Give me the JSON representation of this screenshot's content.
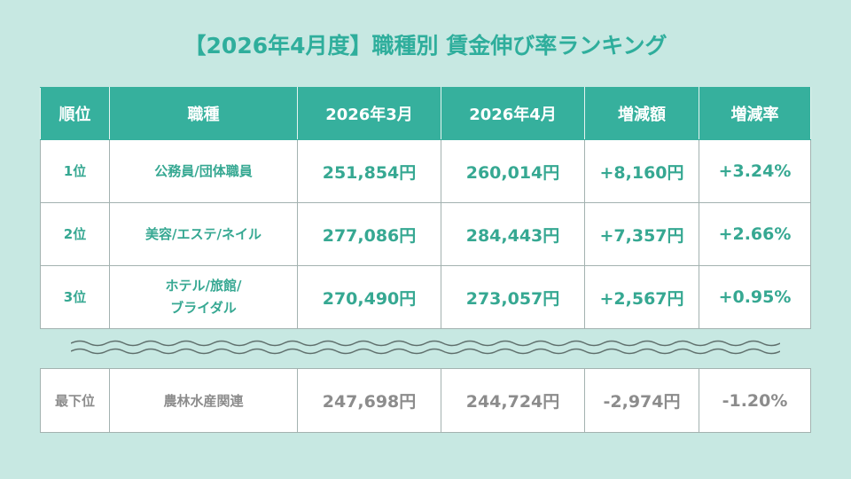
{
  "title": "【2026年4月度】職種別 賃金伸び率ランキング",
  "headers": [
    "順位",
    "職種",
    "2026年3月",
    "2026年4月",
    "増減額",
    "増減率"
  ],
  "rows": [
    {
      "rank": "1位",
      "job": "公務員/団体職員",
      "job2": "",
      "mar": "251,854円",
      "apr": "260,014円",
      "diff": "+8,160円",
      "rate": "+3.24%"
    },
    {
      "rank": "2位",
      "job": "美容/エステ/ネイル",
      "job2": "",
      "mar": "277,086円",
      "apr": "284,443円",
      "diff": "+7,357円",
      "rate": "+2.66%"
    },
    {
      "rank": "3位",
      "job": "ホテル/旅館/",
      "job2": "ブライダル",
      "mar": "270,490円",
      "apr": "273,057円",
      "diff": "+2,567円",
      "rate": "+0.95%"
    }
  ],
  "bottom_row": {
    "rank": "最下位",
    "job": "農林水産関連",
    "mar": "247,698円",
    "apr": "244,724円",
    "diff": "-2,974円",
    "rate": "-1.20%"
  },
  "colors": {
    "header_bg": "#36b09d",
    "accent_text": "#36a892",
    "page_bg": "#c7e8e2",
    "muted_text": "#8c8c8c"
  }
}
